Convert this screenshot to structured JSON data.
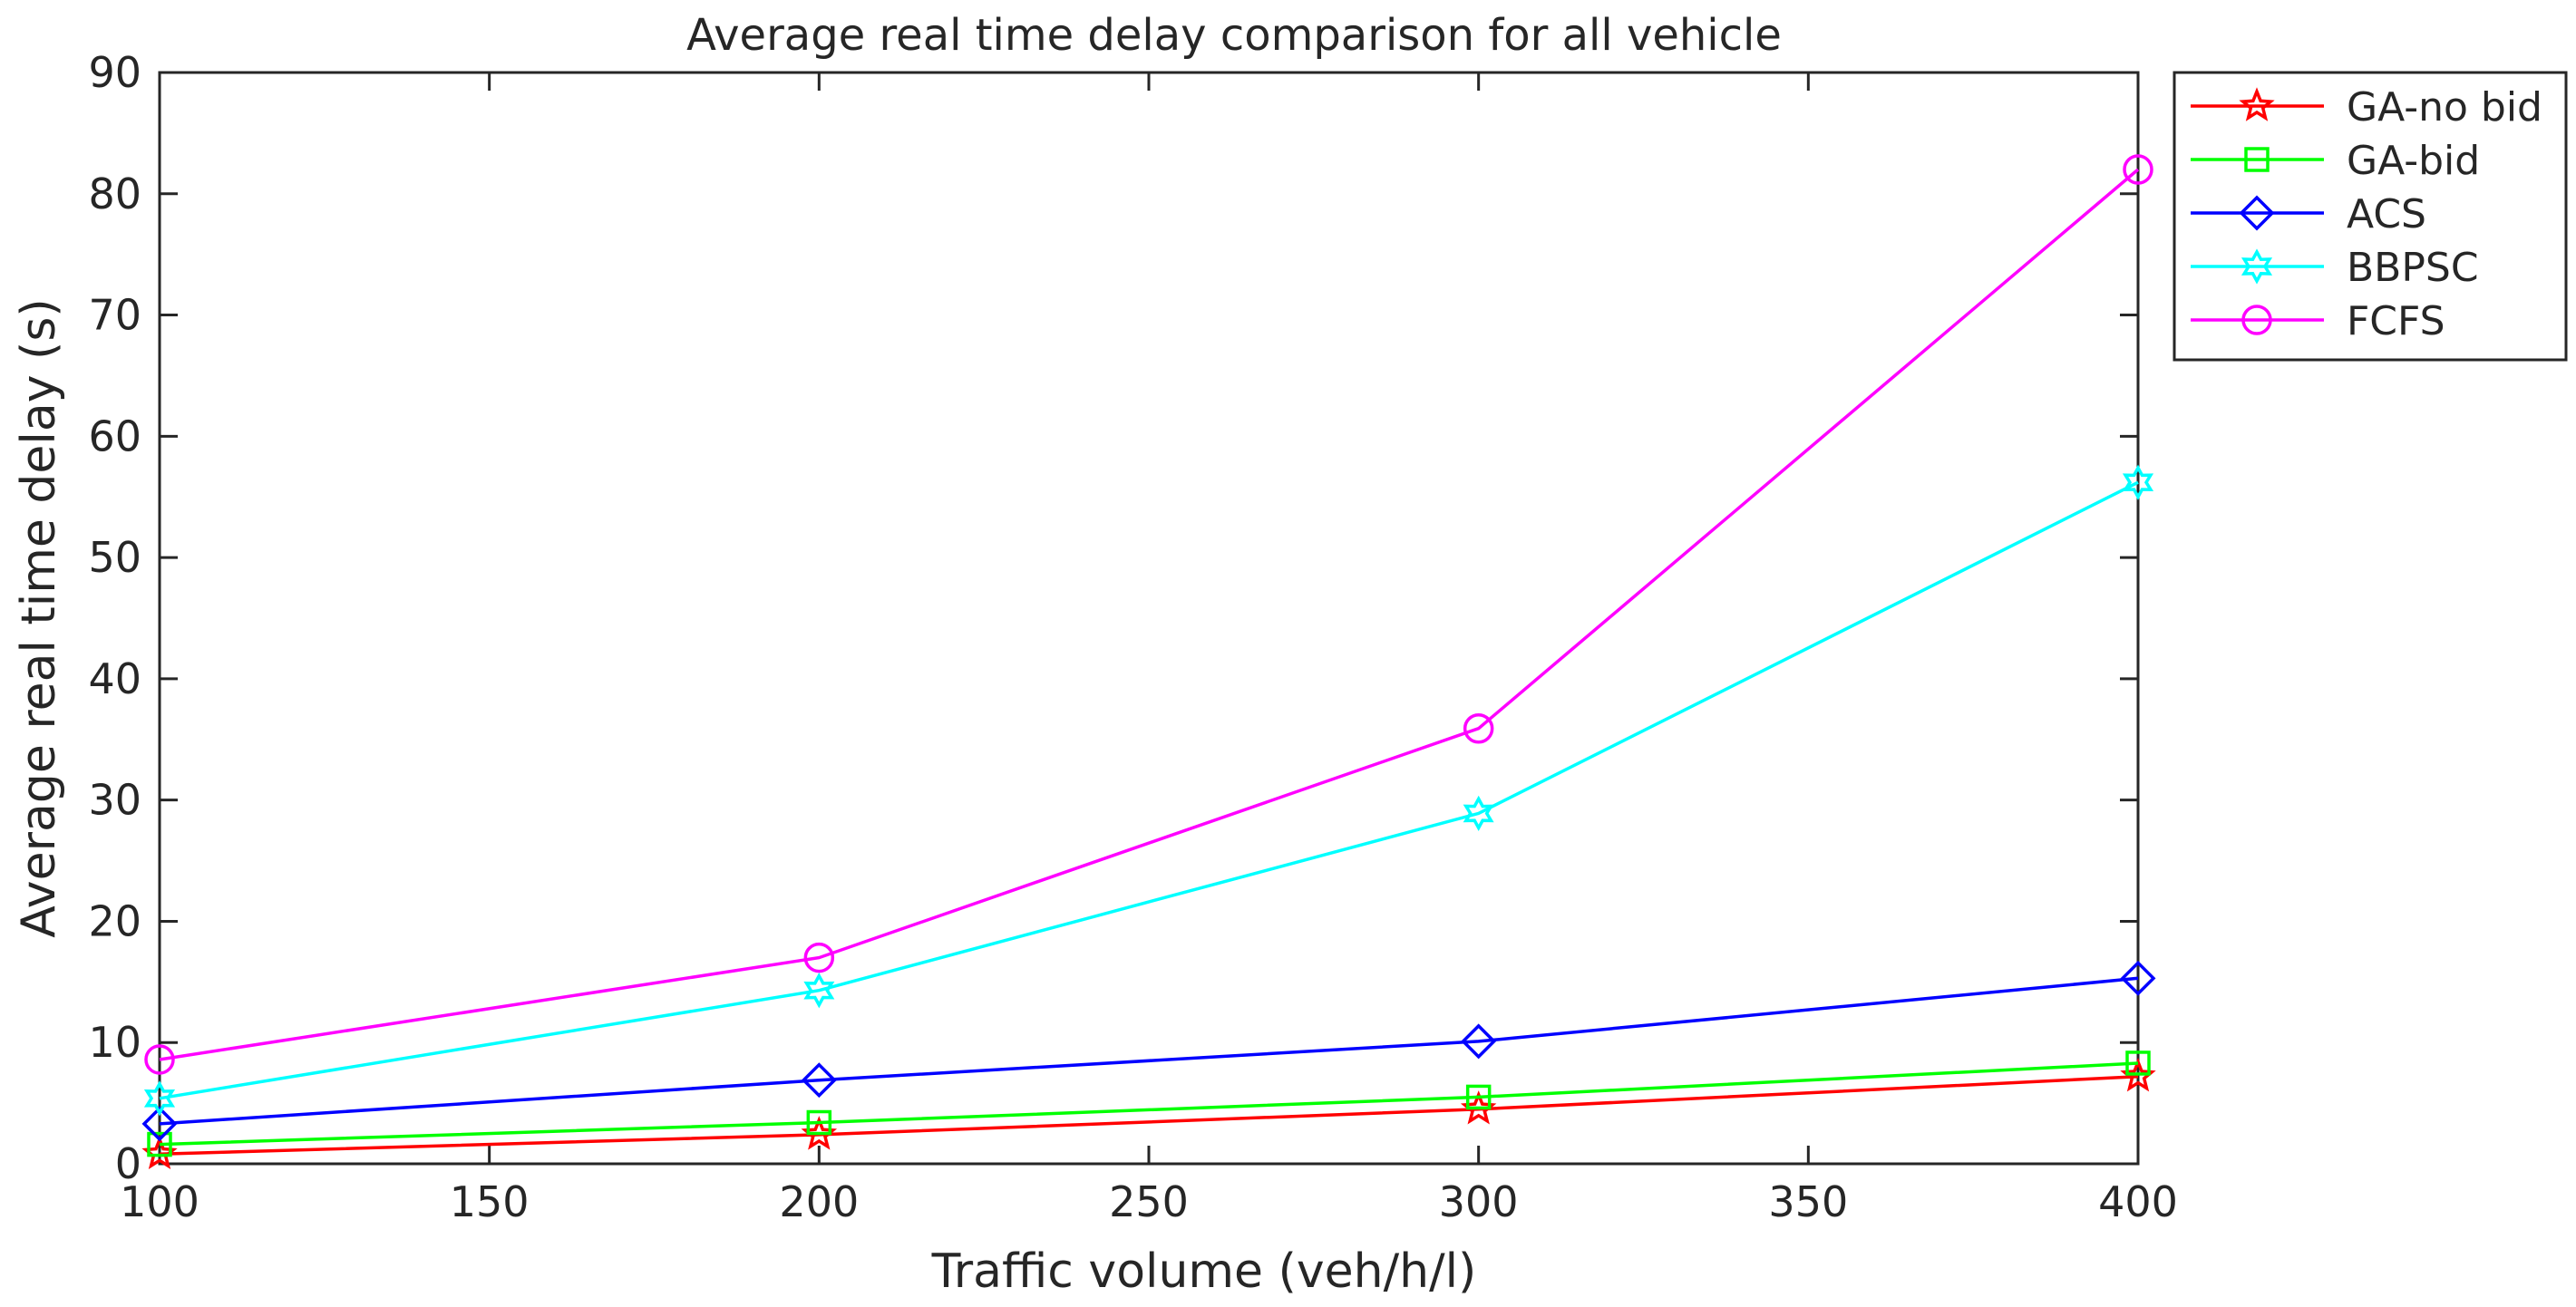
{
  "chart_data": {
    "type": "line",
    "title": "Average real time delay comparison for all vehicle",
    "xlabel": "Traffic volume (veh/h/l)",
    "ylabel": "Average real time delay (s)",
    "xlim": [
      100,
      400
    ],
    "ylim": [
      0,
      90
    ],
    "xticks": [
      "100",
      "150",
      "200",
      "250",
      "300",
      "350",
      "400"
    ],
    "yticks": [
      "0",
      "10",
      "20",
      "30",
      "40",
      "50",
      "60",
      "70",
      "80",
      "90"
    ],
    "grid": false,
    "legend_position": "outside-top-right",
    "x": [
      100,
      200,
      300,
      400
    ],
    "series": [
      {
        "name": "GA-no bid",
        "values": [
          0.8,
          2.4,
          4.5,
          7.2
        ],
        "color": "#ff0000",
        "marker": "star"
      },
      {
        "name": "GA-bid",
        "values": [
          1.6,
          3.4,
          5.5,
          8.3
        ],
        "color": "#00ff00",
        "marker": "square"
      },
      {
        "name": "ACS",
        "values": [
          3.3,
          6.9,
          10.1,
          15.3
        ],
        "color": "#0000ff",
        "marker": "diamond"
      },
      {
        "name": "BBPSC",
        "values": [
          5.4,
          14.3,
          28.9,
          56.2
        ],
        "color": "#00ffff",
        "marker": "hexagram"
      },
      {
        "name": "FCFS",
        "values": [
          8.6,
          17.0,
          35.9,
          82.0
        ],
        "color": "#ff00ff",
        "marker": "circle"
      }
    ]
  }
}
